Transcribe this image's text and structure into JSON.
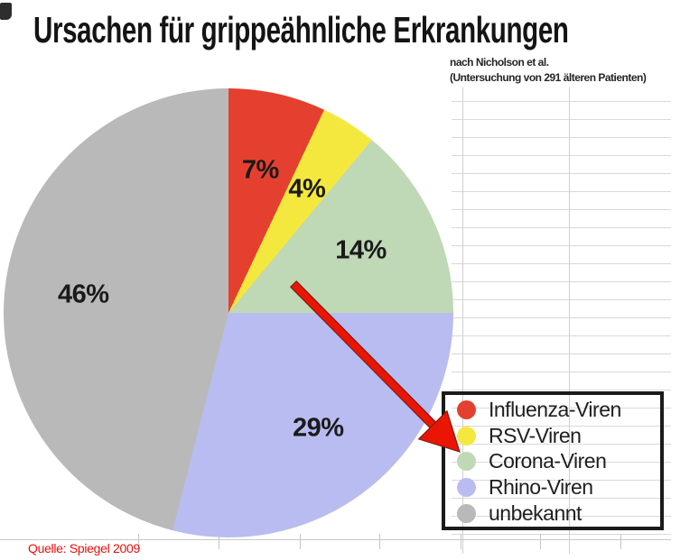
{
  "title": "Ursachen für grippeähnliche Erkrankungen",
  "subtitle": {
    "line1": "nach Nicholson et al.",
    "line2": "(Untersuchung von 291 älteren Patienten)"
  },
  "source": "Quelle: Spiegel 2009",
  "chart_data": {
    "type": "pie",
    "title": "Ursachen für grippeähnliche Erkrankungen",
    "note": "nach Nicholson et al. (Untersuchung von 291 älteren Patienten)",
    "categories": [
      "Influenza-Viren",
      "RSV-Viren",
      "Corona-Viren",
      "Rhino-Viren",
      "unbekannt"
    ],
    "values": [
      7,
      4,
      14,
      29,
      46
    ],
    "unit": "%",
    "slice_labels": [
      "7%",
      "4%",
      "14%",
      "29%",
      "46%"
    ],
    "colors": [
      "#e5402f",
      "#f4e83e",
      "#bfd8b6",
      "#b9bcf1",
      "#b9b9b9"
    ],
    "start_angle_deg": 0,
    "direction": "clockwise",
    "legend_position": "bottom-right",
    "grid": true,
    "annotation": {
      "type": "arrow",
      "color": "#ea1505",
      "points_to": "legend"
    }
  }
}
